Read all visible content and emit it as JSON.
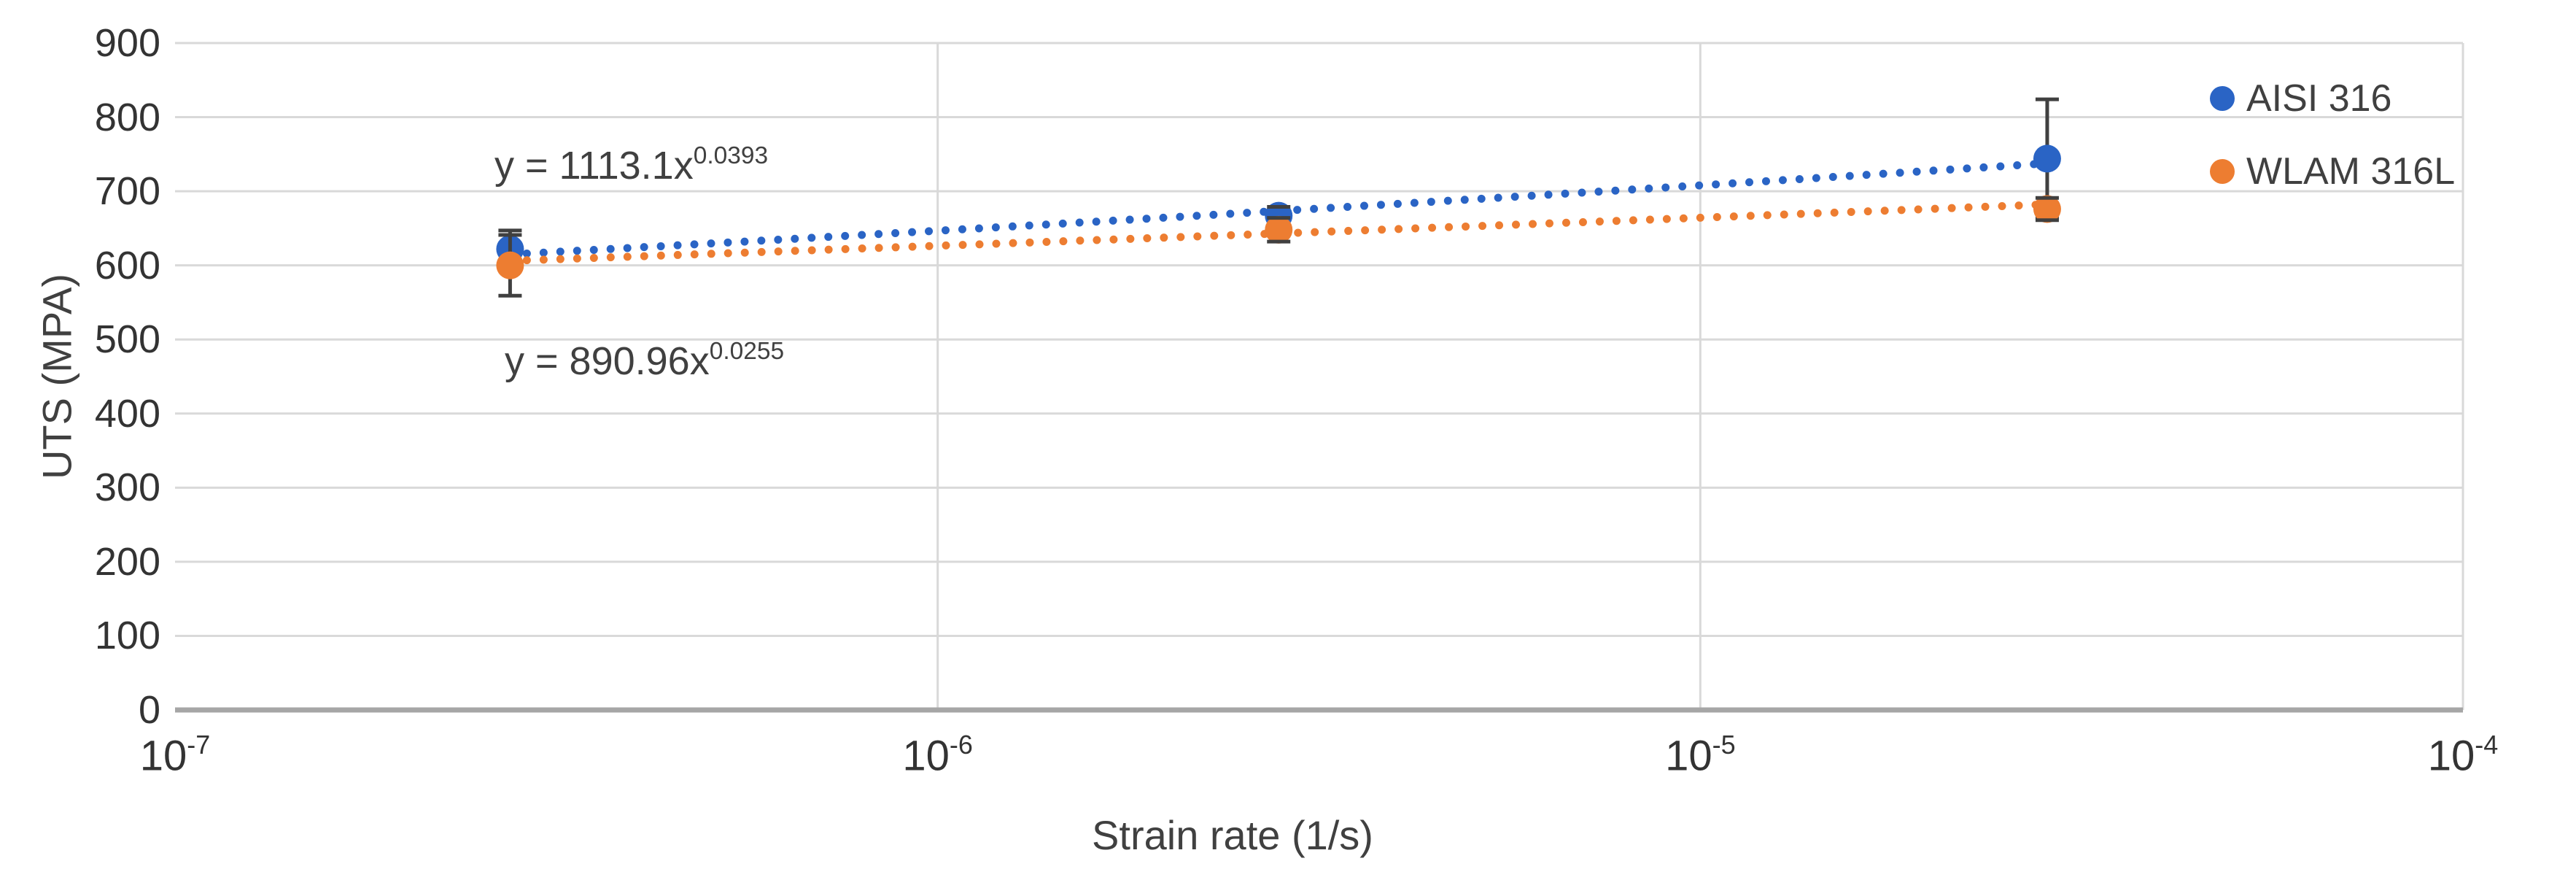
{
  "chart_data": {
    "type": "scatter",
    "title": "",
    "xlabel": "Strain rate (1/s)",
    "ylabel": "UTS (MPA)",
    "x_scale": "log",
    "xlim": [
      1e-07,
      0.0001
    ],
    "ylim": [
      0,
      900
    ],
    "grid": true,
    "gridline_color": "#D9D9D9",
    "axis_line_color": "#A6A6A6",
    "error_bar_color": "#404040",
    "legend_position": "inside-top-right",
    "y_ticks": [
      0,
      100,
      200,
      300,
      400,
      500,
      600,
      700,
      800,
      900
    ],
    "x_ticks": [
      {
        "base": "10",
        "exp": "-7",
        "value": 1e-07
      },
      {
        "base": "10",
        "exp": "-6",
        "value": 1e-06
      },
      {
        "base": "10",
        "exp": "-5",
        "value": 1e-05
      },
      {
        "base": "10",
        "exp": "-4",
        "value": 0.0001
      }
    ],
    "series": [
      {
        "name": "AISI 316",
        "color": "#2A64C5",
        "marker": "circle",
        "points": [
          {
            "x": 2.75e-07,
            "y": 622,
            "yerr": 25
          },
          {
            "x": 2.8e-06,
            "y": 667,
            "yerr": 12
          },
          {
            "x": 2.85e-05,
            "y": 744,
            "yerr": 80
          }
        ],
        "trendline": {
          "type": "power",
          "a": 1113.1,
          "b": 0.0393,
          "style": "dotted",
          "x_start": 2.75e-07,
          "x_end": 3e-05,
          "label_text": "y = 1113.1x",
          "label_sup": "0.0393"
        }
      },
      {
        "name": "WLAM 316L",
        "color": "#ED7D31",
        "marker": "circle",
        "points": [
          {
            "x": 2.75e-07,
            "y": 600,
            "yerr": 41
          },
          {
            "x": 2.8e-06,
            "y": 648,
            "yerr": 16
          },
          {
            "x": 2.85e-05,
            "y": 676,
            "yerr": 15
          }
        ],
        "trendline": {
          "type": "power",
          "a": 890.96,
          "b": 0.0255,
          "style": "dotted",
          "x_start": 2.75e-07,
          "x_end": 3e-05,
          "label_text": "y = 890.96x",
          "label_sup": "0.0255"
        }
      }
    ]
  }
}
